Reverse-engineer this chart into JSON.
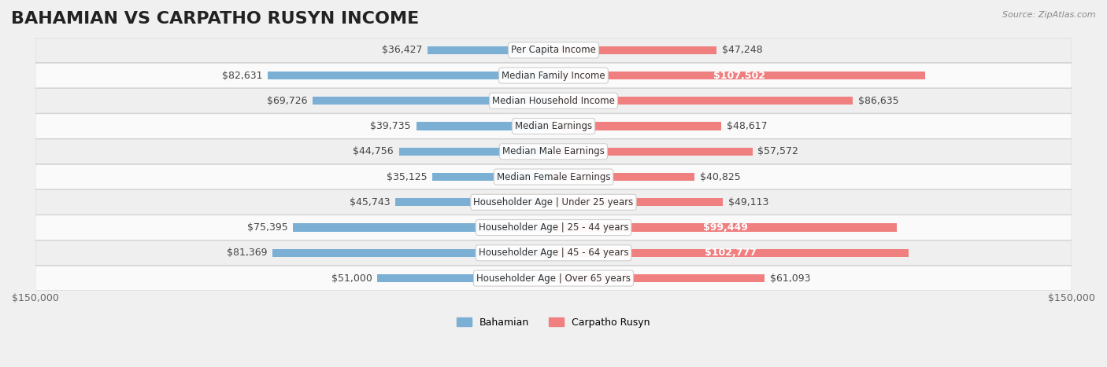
{
  "title": "BAHAMIAN VS CARPATHO RUSYN INCOME",
  "source": "Source: ZipAtlas.com",
  "categories": [
    "Per Capita Income",
    "Median Family Income",
    "Median Household Income",
    "Median Earnings",
    "Median Male Earnings",
    "Median Female Earnings",
    "Householder Age | Under 25 years",
    "Householder Age | 25 - 44 years",
    "Householder Age | 45 - 64 years",
    "Householder Age | Over 65 years"
  ],
  "bahamian": [
    36427,
    82631,
    69726,
    39735,
    44756,
    35125,
    45743,
    75395,
    81369,
    51000
  ],
  "carpatho_rusyn": [
    47248,
    107502,
    86635,
    48617,
    57572,
    40825,
    49113,
    99449,
    102777,
    61093
  ],
  "bahamian_labels": [
    "$36,427",
    "$82,631",
    "$69,726",
    "$39,735",
    "$44,756",
    "$35,125",
    "$45,743",
    "$75,395",
    "$81,369",
    "$51,000"
  ],
  "carpatho_rusyn_labels": [
    "$47,248",
    "$107,502",
    "$86,635",
    "$48,617",
    "$57,572",
    "$40,825",
    "$49,113",
    "$99,449",
    "$102,777",
    "$61,093"
  ],
  "bahamian_color": "#7bafd4",
  "carpatho_rusyn_color": "#f08080",
  "bahamian_color_dark": "#4a86c8",
  "carpatho_rusyn_color_dark": "#e85d8a",
  "axis_max": 150000,
  "background_color": "#f5f5f5",
  "row_bg_color": "#efefef",
  "row_alt_color": "#fafafa",
  "label_inside_threshold": 90000,
  "title_fontsize": 16,
  "label_fontsize": 9,
  "category_fontsize": 8.5,
  "axis_label_fontsize": 9
}
